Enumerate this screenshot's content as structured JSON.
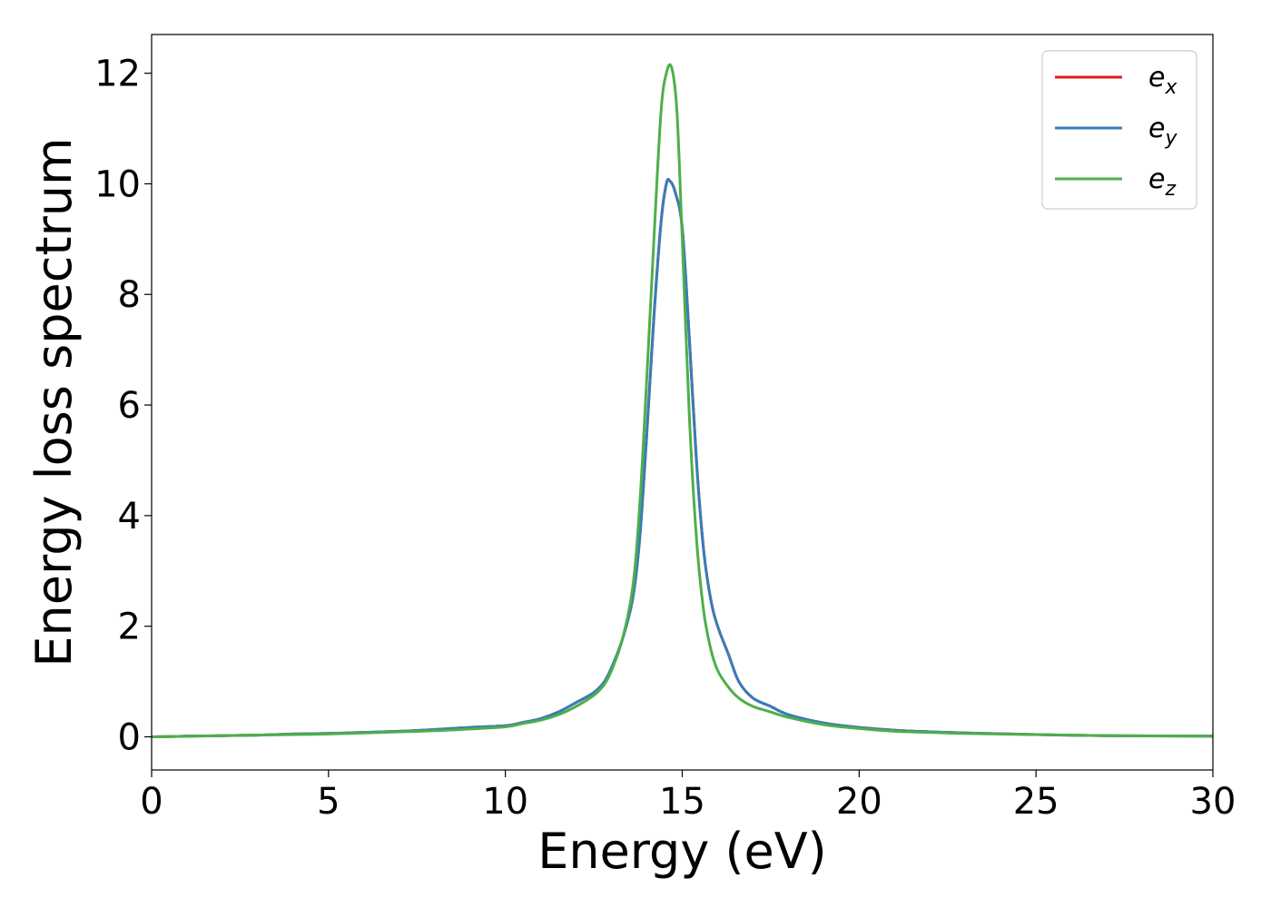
{
  "chart_data": {
    "type": "line",
    "xlabel": "Energy (eV)",
    "ylabel": "Energy loss spectrum",
    "xlim": [
      0,
      30
    ],
    "ylim": [
      -0.6,
      12.7
    ],
    "xticks": [
      0,
      5,
      10,
      15,
      20,
      25,
      30
    ],
    "yticks": [
      0,
      2,
      4,
      6,
      8,
      10,
      12
    ],
    "xtick_labels": [
      "0",
      "5",
      "10",
      "15",
      "20",
      "25",
      "30"
    ],
    "ytick_labels": [
      "0",
      "2",
      "4",
      "6",
      "8",
      "10",
      "12"
    ],
    "grid": false,
    "legend_position": "top-right",
    "series": [
      {
        "name": "e_x",
        "label_base": "e",
        "label_sub": "x",
        "color": "#e41a1c",
        "x": [
          0,
          1,
          2,
          3,
          4,
          5,
          6,
          7,
          8,
          9,
          10,
          10.5,
          11,
          11.5,
          12,
          12.5,
          12.8,
          13,
          13.3,
          13.6,
          13.8,
          14,
          14.2,
          14.4,
          14.55,
          14.65,
          14.8,
          15,
          15.2,
          15.4,
          15.6,
          15.8,
          16,
          16.3,
          16.6,
          17,
          17.5,
          18,
          19,
          20,
          21,
          22,
          23,
          25,
          27,
          30
        ],
        "y": [
          0.0,
          0.01,
          0.02,
          0.03,
          0.05,
          0.06,
          0.08,
          0.1,
          0.13,
          0.17,
          0.2,
          0.26,
          0.33,
          0.45,
          0.62,
          0.8,
          1.0,
          1.25,
          1.75,
          2.5,
          3.6,
          5.5,
          7.6,
          9.3,
          10.0,
          10.05,
          9.85,
          9.2,
          7.2,
          5.0,
          3.4,
          2.5,
          2.0,
          1.5,
          1.0,
          0.7,
          0.55,
          0.4,
          0.25,
          0.17,
          0.12,
          0.09,
          0.07,
          0.04,
          0.02,
          0.01
        ]
      },
      {
        "name": "e_y",
        "label_base": "e",
        "label_sub": "y",
        "color": "#377eb8",
        "x": [
          0,
          1,
          2,
          3,
          4,
          5,
          6,
          7,
          8,
          9,
          10,
          10.5,
          11,
          11.5,
          12,
          12.5,
          12.8,
          13,
          13.3,
          13.6,
          13.8,
          14,
          14.2,
          14.4,
          14.55,
          14.65,
          14.8,
          15,
          15.2,
          15.4,
          15.6,
          15.8,
          16,
          16.3,
          16.6,
          17,
          17.5,
          18,
          19,
          20,
          21,
          22,
          23,
          25,
          27,
          30
        ],
        "y": [
          0.0,
          0.01,
          0.02,
          0.03,
          0.05,
          0.06,
          0.08,
          0.1,
          0.13,
          0.17,
          0.2,
          0.26,
          0.33,
          0.45,
          0.62,
          0.8,
          1.0,
          1.25,
          1.75,
          2.5,
          3.6,
          5.5,
          7.6,
          9.3,
          10.0,
          10.05,
          9.85,
          9.2,
          7.2,
          5.0,
          3.4,
          2.5,
          2.0,
          1.5,
          1.0,
          0.7,
          0.55,
          0.4,
          0.25,
          0.17,
          0.12,
          0.09,
          0.07,
          0.04,
          0.02,
          0.01
        ]
      },
      {
        "name": "e_z",
        "label_base": "e",
        "label_sub": "z",
        "color": "#4daf4a",
        "x": [
          0,
          1,
          2,
          3,
          4,
          5,
          6,
          7,
          8,
          9,
          10,
          10.5,
          11,
          11.5,
          12,
          12.5,
          12.8,
          13,
          13.3,
          13.6,
          13.8,
          14,
          14.2,
          14.4,
          14.55,
          14.7,
          14.85,
          15,
          15.2,
          15.4,
          15.6,
          15.8,
          16,
          16.3,
          16.6,
          17,
          17.5,
          18,
          19,
          20,
          21,
          22,
          23,
          25,
          27,
          30
        ],
        "y": [
          0.0,
          0.01,
          0.02,
          0.03,
          0.04,
          0.05,
          0.07,
          0.09,
          0.11,
          0.14,
          0.18,
          0.24,
          0.3,
          0.4,
          0.55,
          0.75,
          0.95,
          1.2,
          1.75,
          2.7,
          4.2,
          6.5,
          9.0,
          11.3,
          12.0,
          12.1,
          11.3,
          9.0,
          5.8,
          3.6,
          2.3,
          1.6,
          1.2,
          0.9,
          0.7,
          0.55,
          0.45,
          0.35,
          0.22,
          0.15,
          0.1,
          0.08,
          0.06,
          0.04,
          0.02,
          0.01
        ]
      }
    ]
  }
}
